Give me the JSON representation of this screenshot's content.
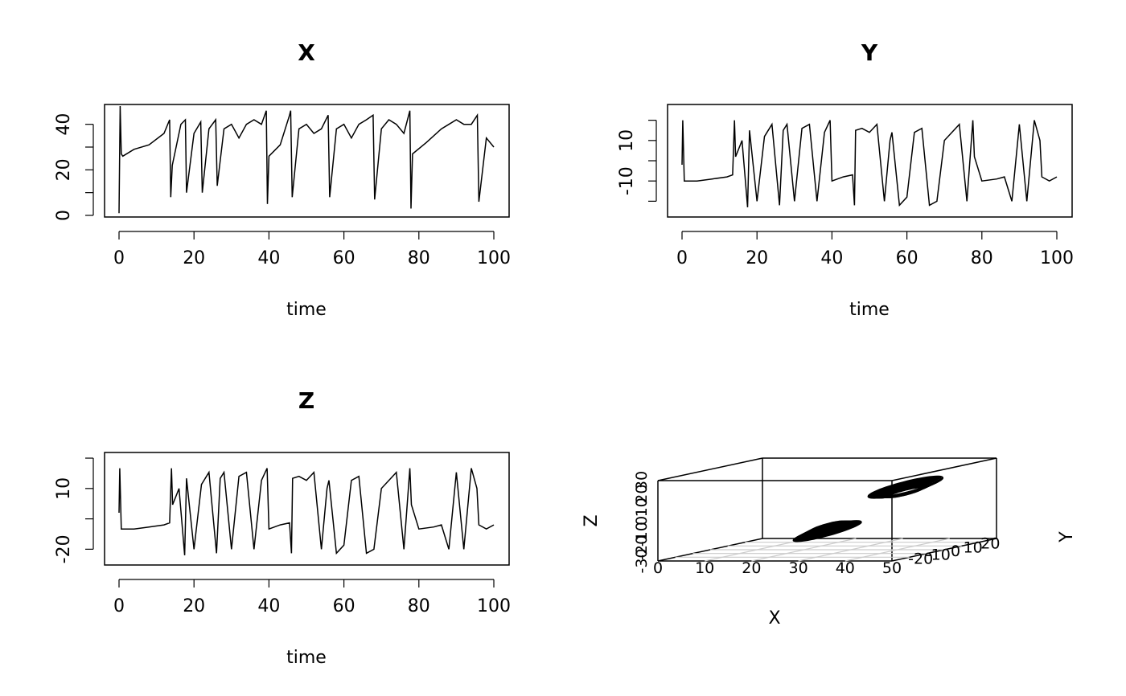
{
  "chart_data": [
    {
      "type": "line",
      "title": "X",
      "xlabel": "time",
      "ylabel": "",
      "xlim": [
        0,
        100
      ],
      "ylim": [
        0,
        48
      ],
      "xticks": [
        0,
        20,
        40,
        60,
        80,
        100
      ],
      "yticks": [
        0,
        20,
        40
      ],
      "xtick_labels": [
        "0",
        "20",
        "40",
        "60",
        "80",
        "100"
      ],
      "ytick_labels": [
        "0",
        "20",
        "40"
      ],
      "series": [
        {
          "x": [
            0,
            0.3,
            0.6,
            1,
            4,
            8,
            12,
            13.5,
            13.8,
            14.2,
            16.5,
            17.7,
            18,
            20,
            21.8,
            22.2,
            24,
            25.8,
            26.2,
            28,
            30,
            32,
            34,
            36,
            38,
            39.3,
            39.6,
            40,
            43,
            45.5,
            45.8,
            46.2,
            48,
            50,
            52,
            54,
            55.8,
            56.2,
            58,
            60,
            62,
            64,
            66,
            67.8,
            68.2,
            70,
            72,
            74,
            76,
            77.6,
            77.9,
            78.3,
            82,
            86,
            88,
            90,
            92,
            94,
            95.6,
            96,
            98,
            100
          ],
          "y": [
            1,
            48,
            27,
            26,
            29,
            31,
            36,
            42,
            8,
            22,
            40,
            42,
            10,
            36,
            41,
            10,
            38,
            42,
            13,
            38,
            40,
            34,
            40,
            42,
            40,
            46,
            5,
            26,
            31,
            44,
            46,
            8,
            38,
            40,
            36,
            38,
            44,
            8,
            38,
            40,
            34,
            40,
            42,
            44,
            7,
            38,
            42,
            40,
            36,
            46,
            3,
            27,
            32,
            38,
            40,
            42,
            40,
            40,
            44,
            6,
            34,
            30
          ]
        }
      ]
    },
    {
      "type": "line",
      "title": "Y",
      "xlabel": "time",
      "ylabel": "",
      "xlim": [
        0,
        100
      ],
      "ylim": [
        -27,
        27
      ],
      "xticks": [
        0,
        20,
        40,
        60,
        80,
        100
      ],
      "yticks": [
        -10,
        10
      ],
      "xtick_labels": [
        "0",
        "20",
        "40",
        "60",
        "80",
        "100"
      ],
      "ytick_labels": [
        "-10",
        "10"
      ],
      "series": [
        {
          "x": [
            0,
            0.2,
            0.6,
            1,
            4,
            8,
            12,
            13.5,
            14,
            14.3,
            16,
            17.5,
            18,
            20,
            22,
            24,
            26,
            27,
            28,
            30,
            32,
            34,
            36,
            38,
            39.5,
            40,
            43,
            45.5,
            46,
            46.3,
            48,
            50,
            52,
            54,
            55.5,
            56,
            58,
            60,
            62,
            64,
            66,
            68,
            70,
            72,
            74,
            76,
            77.6,
            78,
            80,
            84,
            86,
            88,
            90,
            92,
            94,
            95.5,
            96,
            98,
            100
          ],
          "y": [
            -2,
            20,
            -10,
            -10,
            -10,
            -9,
            -8,
            -7,
            20,
            2,
            10,
            -23,
            15,
            -20,
            12,
            18,
            -22,
            15,
            18,
            -20,
            16,
            18,
            -20,
            14,
            20,
            -10,
            -8,
            -7,
            -22,
            15,
            16,
            14,
            18,
            -20,
            10,
            14,
            -22,
            -18,
            14,
            16,
            -22,
            -20,
            10,
            14,
            18,
            -20,
            20,
            2,
            -10,
            -9,
            -8,
            -20,
            18,
            -20,
            20,
            10,
            -8,
            -10,
            -8
          ]
        }
      ]
    },
    {
      "type": "line",
      "title": "Z",
      "xlabel": "time",
      "ylabel": "",
      "xlim": [
        0,
        100
      ],
      "ylim": [
        -27,
        27
      ],
      "xticks": [
        0,
        20,
        40,
        60,
        80,
        100
      ],
      "yticks": [
        -20,
        10
      ],
      "xtick_labels": [
        "0",
        "20",
        "40",
        "60",
        "80",
        "100"
      ],
      "ytick_labels": [
        "-20",
        "10"
      ],
      "series": [
        {
          "x": [
            0,
            0.2,
            0.6,
            1,
            4,
            8,
            12,
            13.5,
            14,
            14.3,
            16,
            17.5,
            18,
            20,
            22,
            24,
            26,
            27,
            28,
            30,
            32,
            34,
            36,
            38,
            39.5,
            40,
            43,
            45.5,
            46,
            46.3,
            48,
            50,
            52,
            54,
            55.5,
            56,
            58,
            60,
            62,
            64,
            66,
            68,
            70,
            72,
            74,
            76,
            77.6,
            78,
            80,
            84,
            86,
            88,
            90,
            92,
            94,
            95.5,
            96,
            98,
            100
          ],
          "y": [
            -2,
            20,
            -10,
            -10,
            -10,
            -9,
            -8,
            -7,
            20,
            2,
            10,
            -23,
            15,
            -20,
            12,
            18,
            -22,
            15,
            18,
            -20,
            16,
            18,
            -20,
            14,
            20,
            -10,
            -8,
            -7,
            -22,
            15,
            16,
            14,
            18,
            -20,
            10,
            14,
            -22,
            -18,
            14,
            16,
            -22,
            -20,
            10,
            14,
            18,
            -20,
            20,
            2,
            -10,
            -9,
            -8,
            -20,
            18,
            -20,
            20,
            10,
            -8,
            -10,
            -8
          ]
        }
      ]
    },
    {
      "type": "scatter3d",
      "title": "",
      "xlabel": "X",
      "ylabel": "Y",
      "zlabel": "Z",
      "xlim": [
        0,
        50
      ],
      "ylim": [
        -30,
        30
      ],
      "zlim": [
        -30,
        30
      ],
      "xtick_labels": [
        "0",
        "10",
        "20",
        "30",
        "40",
        "50"
      ],
      "ytick_labels": [
        "-20",
        "-10",
        "0",
        "10",
        "20"
      ],
      "ztick_labels": [
        "-30",
        "-20",
        "-10",
        "0",
        "10",
        "20",
        "30"
      ],
      "loops": [
        {
          "center": [
            38,
            10,
            10
          ],
          "radii": [
            6,
            14,
            18
          ],
          "count": 14
        },
        {
          "center": [
            28,
            -8,
            -10
          ],
          "radii": [
            5,
            14,
            16
          ],
          "count": 14
        }
      ]
    }
  ]
}
